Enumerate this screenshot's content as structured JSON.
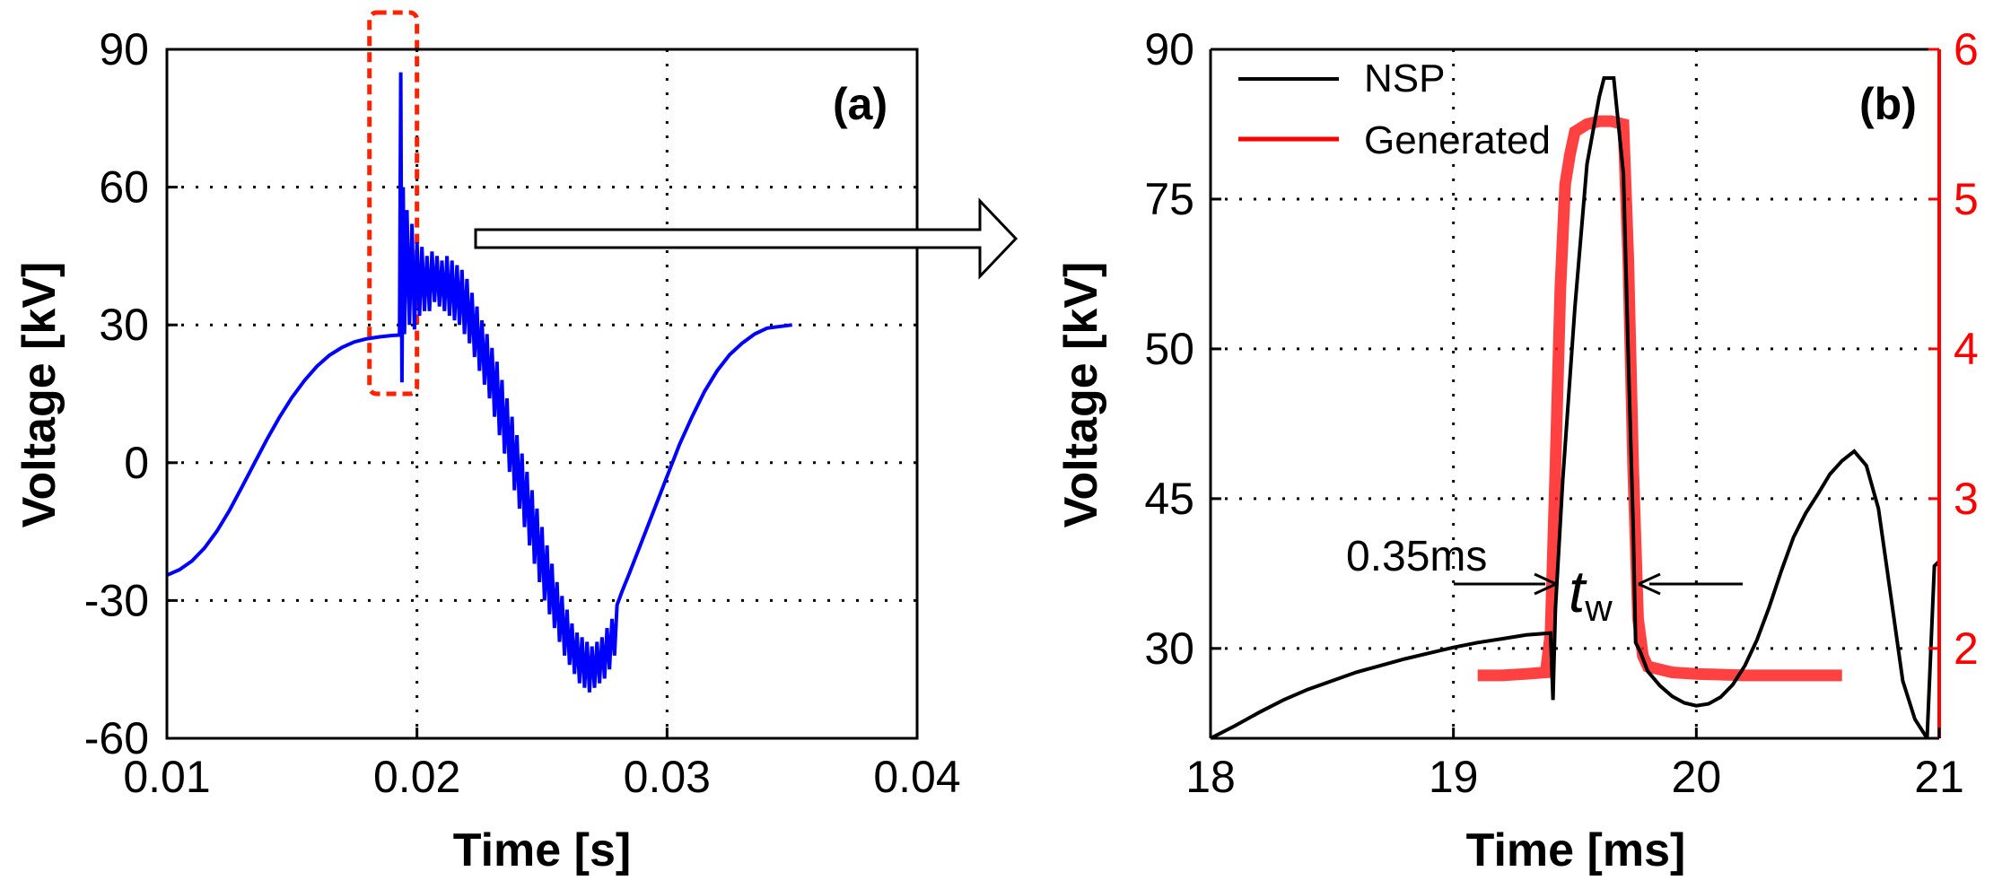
{
  "chart_data": [
    {
      "type": "line",
      "panel_label": "(a)",
      "xlabel": "Time [s]",
      "ylabel": "Voltage [kV]",
      "xlim": [
        0.01,
        0.04
      ],
      "ylim": [
        -60,
        90
      ],
      "xticks": [
        0.01,
        0.02,
        0.03,
        0.04
      ],
      "xtick_labels": [
        "0.01",
        "0.02",
        "0.03",
        "0.04"
      ],
      "yticks": [
        -60,
        -30,
        0,
        30,
        60,
        90
      ],
      "ytick_labels": [
        "-60",
        "-30",
        "0",
        "30",
        "60",
        "90"
      ],
      "grid": true,
      "highlight_box": {
        "x_range": [
          0.0181,
          0.02
        ],
        "y_range": [
          15,
          98
        ],
        "color": "#ff2200"
      },
      "series": [
        {
          "name": "voltage",
          "color": "#0000ff",
          "points": [
            [
              0.01,
              -24.5
            ],
            [
              0.0105,
              -23.3
            ],
            [
              0.011,
              -21.4
            ],
            [
              0.0115,
              -18.6
            ],
            [
              0.012,
              -14.9
            ],
            [
              0.0125,
              -10.4
            ],
            [
              0.013,
              -5.3
            ],
            [
              0.0135,
              -0.1
            ],
            [
              0.014,
              5.1
            ],
            [
              0.0145,
              9.9
            ],
            [
              0.015,
              14.2
            ],
            [
              0.0155,
              17.9
            ],
            [
              0.016,
              21.0
            ],
            [
              0.0165,
              23.4
            ],
            [
              0.017,
              25.1
            ],
            [
              0.0175,
              26.3
            ],
            [
              0.018,
              27.0
            ],
            [
              0.0185,
              27.4
            ],
            [
              0.019,
              27.7
            ],
            [
              0.0193,
              27.8
            ],
            [
              0.01935,
              85.0
            ],
            [
              0.0194,
              17.5
            ],
            [
              0.01945,
              60.0
            ],
            [
              0.0195,
              28.0
            ],
            [
              0.0196,
              55.0
            ],
            [
              0.0197,
              30.0
            ],
            [
              0.0198,
              52.0
            ],
            [
              0.0199,
              29.0
            ],
            [
              0.02,
              48.0
            ],
            [
              0.0201,
              32.0
            ],
            [
              0.0202,
              47.0
            ],
            [
              0.0203,
              33.0
            ],
            [
              0.0204,
              45.0
            ],
            [
              0.0205,
              33.0
            ],
            [
              0.0206,
              46.0
            ],
            [
              0.0207,
              35.0
            ],
            [
              0.0208,
              45.0
            ],
            [
              0.0209,
              34.0
            ],
            [
              0.021,
              44.0
            ],
            [
              0.0211,
              33.0
            ],
            [
              0.0212,
              45.0
            ],
            [
              0.0213,
              32.0
            ],
            [
              0.0214,
              44.0
            ],
            [
              0.0215,
              31.0
            ],
            [
              0.0216,
              43.0
            ],
            [
              0.0217,
              30.0
            ],
            [
              0.0218,
              42.0
            ],
            [
              0.0219,
              28.0
            ],
            [
              0.022,
              40.0
            ],
            [
              0.0221,
              26.0
            ],
            [
              0.0222,
              37.0
            ],
            [
              0.0223,
              23.0
            ],
            [
              0.0224,
              34.0
            ],
            [
              0.0225,
              20.0
            ],
            [
              0.0226,
              31.0
            ],
            [
              0.0227,
              17.0
            ],
            [
              0.0228,
              28.0
            ],
            [
              0.0229,
              14.0
            ],
            [
              0.023,
              25.0
            ],
            [
              0.0231,
              10.0
            ],
            [
              0.0232,
              22.0
            ],
            [
              0.0233,
              6.0
            ],
            [
              0.0234,
              18.0
            ],
            [
              0.0235,
              2.0
            ],
            [
              0.0236,
              14.0
            ],
            [
              0.0237,
              -2.0
            ],
            [
              0.0238,
              10.0
            ],
            [
              0.0239,
              -6.0
            ],
            [
              0.024,
              6.0
            ],
            [
              0.0241,
              -10.0
            ],
            [
              0.0242,
              2.0
            ],
            [
              0.0243,
              -14.0
            ],
            [
              0.0244,
              -2.0
            ],
            [
              0.0245,
              -18.0
            ],
            [
              0.0246,
              -6.0
            ],
            [
              0.0247,
              -22.0
            ],
            [
              0.0248,
              -10.0
            ],
            [
              0.0249,
              -26.0
            ],
            [
              0.025,
              -14.0
            ],
            [
              0.0251,
              -30.0
            ],
            [
              0.0252,
              -18.0
            ],
            [
              0.0253,
              -33.0
            ],
            [
              0.0254,
              -22.0
            ],
            [
              0.0255,
              -36.0
            ],
            [
              0.0256,
              -26.0
            ],
            [
              0.0257,
              -39.0
            ],
            [
              0.0258,
              -29.0
            ],
            [
              0.0259,
              -42.0
            ],
            [
              0.026,
              -32.0
            ],
            [
              0.0261,
              -44.0
            ],
            [
              0.0262,
              -35.0
            ],
            [
              0.0263,
              -46.0
            ],
            [
              0.0264,
              -37.0
            ],
            [
              0.0265,
              -48.0
            ],
            [
              0.0266,
              -38.0
            ],
            [
              0.0267,
              -49.0
            ],
            [
              0.0268,
              -39.0
            ],
            [
              0.0269,
              -50.0
            ],
            [
              0.027,
              -40.0
            ],
            [
              0.0271,
              -49.0
            ],
            [
              0.0272,
              -39.0
            ],
            [
              0.0273,
              -48.0
            ],
            [
              0.0274,
              -38.0
            ],
            [
              0.0275,
              -47.0
            ],
            [
              0.0276,
              -36.0
            ],
            [
              0.0277,
              -45.0
            ],
            [
              0.0278,
              -34.0
            ],
            [
              0.0279,
              -42.0
            ],
            [
              0.028,
              -31.0
            ],
            [
              0.0282,
              -28.0
            ],
            [
              0.0285,
              -24.0
            ],
            [
              0.029,
              -17.0
            ],
            [
              0.0295,
              -10.0
            ],
            [
              0.03,
              -3.0
            ],
            [
              0.0305,
              4.0
            ],
            [
              0.031,
              10.0
            ],
            [
              0.0315,
              15.5
            ],
            [
              0.032,
              20.0
            ],
            [
              0.0325,
              23.5
            ],
            [
              0.033,
              26.0
            ],
            [
              0.0335,
              28.0
            ],
            [
              0.034,
              29.3
            ],
            [
              0.035,
              30.0
            ]
          ]
        }
      ]
    },
    {
      "type": "line",
      "panel_label": "(b)",
      "xlabel": "Time [ms]",
      "ylabel": "Voltage [kV]",
      "xlim": [
        18,
        21
      ],
      "ylim": [
        18,
        90
      ],
      "y2lim": [
        1.4,
        6
      ],
      "xticks": [
        18,
        19,
        20,
        21
      ],
      "xtick_labels": [
        "18",
        "19",
        "20",
        "21"
      ],
      "yticks": [
        30,
        45,
        50,
        75,
        90
      ],
      "ytick_labels": [
        "30",
        "45",
        "50",
        "75",
        "90"
      ],
      "y2ticks": [
        2,
        3,
        4,
        5,
        6
      ],
      "y2tick_labels": [
        "2",
        "3",
        "4",
        "5",
        "6"
      ],
      "grid": true,
      "legend": {
        "position": "top-left",
        "entries": [
          "NSP",
          "Generated"
        ]
      },
      "annotations": {
        "duration_text": "0.35ms",
        "tw_main": "t",
        "tw_sub": "w"
      },
      "series": [
        {
          "name": "NSP",
          "color": "#000000",
          "axis": "left",
          "points": [
            [
              18.0,
              18.0
            ],
            [
              18.1,
              19.3
            ],
            [
              18.2,
              20.7
            ],
            [
              18.3,
              22.0
            ],
            [
              18.4,
              23.1
            ],
            [
              18.5,
              24.0
            ],
            [
              18.6,
              24.9
            ],
            [
              18.7,
              25.6
            ],
            [
              18.8,
              26.3
            ],
            [
              18.9,
              26.9
            ],
            [
              19.0,
              27.5
            ],
            [
              19.1,
              28.0
            ],
            [
              19.2,
              28.4
            ],
            [
              19.3,
              28.8
            ],
            [
              19.4,
              29.0
            ],
            [
              19.41,
              22.0
            ],
            [
              19.42,
              31.5
            ],
            [
              19.45,
              45.0
            ],
            [
              19.5,
              63.0
            ],
            [
              19.55,
              78.0
            ],
            [
              19.6,
              85.0
            ],
            [
              19.62,
              87.0
            ],
            [
              19.66,
              87.0
            ],
            [
              19.7,
              77.0
            ],
            [
              19.72,
              58.0
            ],
            [
              19.74,
              40.0
            ],
            [
              19.75,
              28.0
            ],
            [
              19.77,
              27.0
            ],
            [
              19.8,
              25.0
            ],
            [
              19.85,
              23.5
            ],
            [
              19.9,
              22.4
            ],
            [
              19.95,
              21.7
            ],
            [
              20.0,
              21.4
            ],
            [
              20.05,
              21.6
            ],
            [
              20.1,
              22.3
            ],
            [
              20.15,
              23.6
            ],
            [
              20.2,
              25.6
            ],
            [
              20.25,
              28.3
            ],
            [
              20.3,
              31.7
            ],
            [
              20.35,
              35.5
            ],
            [
              20.4,
              39.0
            ],
            [
              20.45,
              41.5
            ],
            [
              20.5,
              43.5
            ],
            [
              20.55,
              45.6
            ],
            [
              20.6,
              47.0
            ],
            [
              20.65,
              48.0
            ],
            [
              20.7,
              46.5
            ],
            [
              20.75,
              42.0
            ],
            [
              20.8,
              33.0
            ],
            [
              20.85,
              24.0
            ],
            [
              20.9,
              20.0
            ],
            [
              20.95,
              18.0
            ],
            [
              20.98,
              36.0
            ],
            [
              21.0,
              36.5
            ]
          ]
        },
        {
          "name": "Generated",
          "color": "#ff0000",
          "axis": "right",
          "points": [
            [
              19.1,
              1.82
            ],
            [
              19.2,
              1.82
            ],
            [
              19.3,
              1.83
            ],
            [
              19.38,
              1.84
            ],
            [
              19.4,
              2.1
            ],
            [
              19.42,
              3.2
            ],
            [
              19.44,
              4.4
            ],
            [
              19.46,
              5.1
            ],
            [
              19.48,
              5.3
            ],
            [
              19.5,
              5.45
            ],
            [
              19.55,
              5.5
            ],
            [
              19.6,
              5.52
            ],
            [
              19.65,
              5.52
            ],
            [
              19.7,
              5.5
            ],
            [
              19.72,
              4.6
            ],
            [
              19.74,
              3.2
            ],
            [
              19.76,
              2.2
            ],
            [
              19.78,
              1.95
            ],
            [
              19.8,
              1.88
            ],
            [
              19.9,
              1.84
            ],
            [
              20.0,
              1.83
            ],
            [
              20.2,
              1.82
            ],
            [
              20.4,
              1.82
            ],
            [
              20.6,
              1.82
            ]
          ]
        }
      ]
    }
  ]
}
